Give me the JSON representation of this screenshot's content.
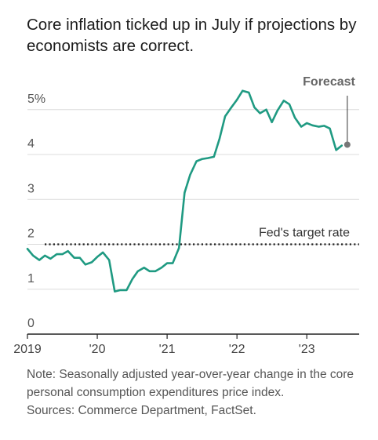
{
  "title": "Core inflation ticked up in July if projections by economists are correct.",
  "note": "Note: Seasonally adjusted year-over-year change in the core personal consumption expenditures price index.",
  "sources": "Sources: Commerce Department, FactSet.",
  "chart_data": {
    "type": "line",
    "title": "Core inflation ticked up in July if projections by economists are correct.",
    "xlabel": "",
    "ylabel": "",
    "ylim": [
      0,
      5.8
    ],
    "xlim": [
      2019.0,
      2023.75
    ],
    "y_ticks": [
      0,
      1,
      2,
      3,
      4,
      5
    ],
    "y_tick_labels": [
      "0",
      "1",
      "2",
      "3",
      "4",
      "5%"
    ],
    "x_ticks": [
      2019,
      2020,
      2021,
      2022,
      2023
    ],
    "x_tick_labels": [
      "2019",
      "'20",
      "'21",
      "'22",
      "'23"
    ],
    "grid": true,
    "colors": {
      "line": "#1f9a82",
      "reference": "#222222",
      "forecast_marker": "#777777"
    },
    "series": [
      {
        "x": [
          2019.0,
          2019.08,
          2019.17,
          2019.25,
          2019.33,
          2019.42,
          2019.5,
          2019.58,
          2019.67,
          2019.75,
          2019.83,
          2019.92,
          2020.0,
          2020.08,
          2020.17,
          2020.25,
          2020.33,
          2020.42,
          2020.5,
          2020.58,
          2020.67,
          2020.75,
          2020.83,
          2020.92,
          2021.0,
          2021.08,
          2021.17,
          2021.25,
          2021.33,
          2021.42,
          2021.5,
          2021.58,
          2021.67,
          2021.75,
          2021.83,
          2021.92,
          2022.0,
          2022.08,
          2022.17,
          2022.25,
          2022.33,
          2022.42,
          2022.5,
          2022.58,
          2022.67,
          2022.75,
          2022.83,
          2022.92,
          2023.0,
          2023.08,
          2023.17,
          2023.25,
          2023.33,
          2023.42,
          2023.5
        ],
        "values": [
          1.9,
          1.75,
          1.65,
          1.75,
          1.68,
          1.78,
          1.78,
          1.85,
          1.7,
          1.7,
          1.55,
          1.6,
          1.72,
          1.82,
          1.65,
          0.95,
          0.98,
          0.98,
          1.22,
          1.4,
          1.48,
          1.4,
          1.4,
          1.48,
          1.58,
          1.58,
          1.92,
          3.15,
          3.55,
          3.85,
          3.9,
          3.92,
          3.95,
          4.35,
          4.85,
          5.05,
          5.22,
          5.42,
          5.38,
          5.05,
          4.92,
          5.0,
          4.72,
          4.98,
          5.2,
          5.12,
          4.82,
          4.62,
          4.7,
          4.65,
          4.62,
          4.64,
          4.58,
          4.1,
          4.2
        ]
      }
    ],
    "reference_line": {
      "y": 2,
      "label": "Fed's target rate"
    },
    "annotations": [
      {
        "label": "Forecast",
        "x": 2023.58,
        "y": 4.22
      }
    ]
  }
}
